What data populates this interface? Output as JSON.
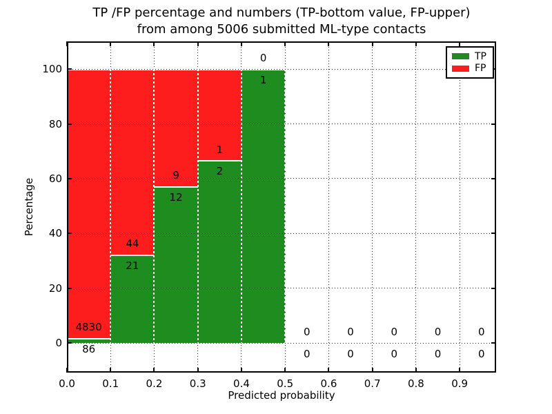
{
  "chart_data": {
    "type": "bar",
    "stacked": true,
    "title_line1": "TP /FP percentage and numbers (TP-bottom value, FP-upper)",
    "title_line2": "from among 5006 submitted ML-type contacts",
    "xlabel": "Predicted probability",
    "ylabel": "Percentage",
    "xticks": [
      "0.0",
      "0.1",
      "0.2",
      "0.3",
      "0.4",
      "0.5",
      "0.6",
      "0.7",
      "0.8",
      "0.9"
    ],
    "yticks": [
      0,
      20,
      40,
      60,
      80,
      100
    ],
    "xlim": [
      0,
      0.9835
    ],
    "ylim": [
      -10.8,
      110.1
    ],
    "grid": true,
    "bar_width": 0.1,
    "colors": {
      "tp": "#1e8c1e",
      "fp": "#fd1d1d",
      "bar_edge": "#ffffff",
      "grid": "#000000"
    },
    "legend": {
      "position": "upper-right",
      "entries": [
        {
          "label": "TP",
          "color": "#1e8c1e"
        },
        {
          "label": "FP",
          "color": "#fd1d1d"
        }
      ]
    },
    "bins": [
      {
        "x0": 0.0,
        "x1": 0.1,
        "tp": 86,
        "fp": 4830,
        "tp_pct": 1.75
      },
      {
        "x0": 0.1,
        "x1": 0.2,
        "tp": 21,
        "fp": 44,
        "tp_pct": 32.31
      },
      {
        "x0": 0.2,
        "x1": 0.3,
        "tp": 12,
        "fp": 9,
        "tp_pct": 57.14
      },
      {
        "x0": 0.3,
        "x1": 0.4,
        "tp": 2,
        "fp": 1,
        "tp_pct": 66.67
      },
      {
        "x0": 0.4,
        "x1": 0.5,
        "tp": 1,
        "fp": 0,
        "tp_pct": 100
      },
      {
        "x0": 0.5,
        "x1": 0.6,
        "tp": 0,
        "fp": 0,
        "tp_pct": 0
      },
      {
        "x0": 0.6,
        "x1": 0.7,
        "tp": 0,
        "fp": 0,
        "tp_pct": 0
      },
      {
        "x0": 0.7,
        "x1": 0.8,
        "tp": 0,
        "fp": 0,
        "tp_pct": 0
      },
      {
        "x0": 0.8,
        "x1": 0.9,
        "tp": 0,
        "fp": 0,
        "tp_pct": 0
      },
      {
        "x0": 0.9,
        "x1": 1.0,
        "tp": 0,
        "fp": 0,
        "tp_pct": 0
      }
    ]
  }
}
